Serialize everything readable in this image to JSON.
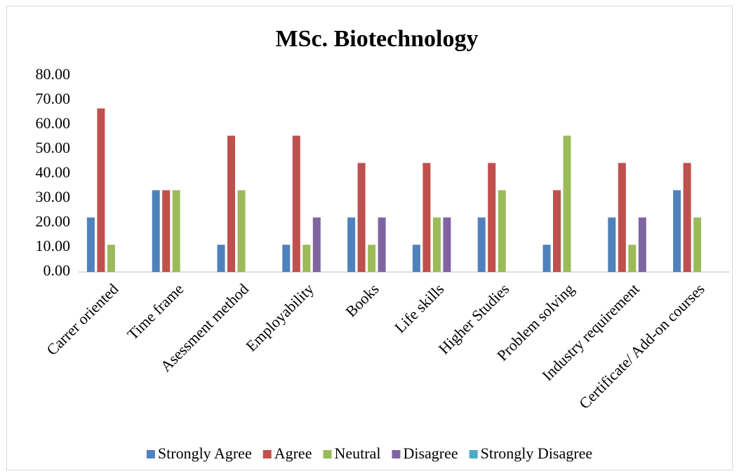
{
  "chart_data": {
    "type": "bar",
    "title": "MSc. Biotechnology",
    "categories": [
      "Carrer oriented",
      "Time frame",
      "Asessment method",
      "Employability",
      "Books",
      "Life skills",
      "Higher Studies",
      "Problem solving",
      "Industry requirement",
      "Certificate/ Add-on courses"
    ],
    "series": [
      {
        "name": "Strongly Agree",
        "color": "#4f81bd",
        "values": [
          22.22,
          33.33,
          11.11,
          11.11,
          22.22,
          11.11,
          22.22,
          11.11,
          22.22,
          33.33
        ]
      },
      {
        "name": "Agree",
        "color": "#c0504d",
        "values": [
          66.67,
          33.33,
          55.56,
          55.56,
          44.44,
          44.44,
          44.44,
          33.33,
          44.44,
          44.44
        ]
      },
      {
        "name": "Neutral",
        "color": "#9bbb59",
        "values": [
          11.11,
          33.33,
          33.33,
          11.11,
          11.11,
          22.22,
          33.33,
          55.56,
          11.11,
          22.22
        ]
      },
      {
        "name": "Disagree",
        "color": "#8064a2",
        "values": [
          0,
          0,
          0,
          22.22,
          22.22,
          22.22,
          0,
          0,
          22.22,
          0
        ]
      },
      {
        "name": "Strongly Disagree",
        "color": "#4bacc6",
        "values": [
          0,
          0,
          0,
          0,
          0,
          0,
          0,
          0,
          0,
          0
        ]
      }
    ],
    "ylim": [
      0,
      80
    ],
    "yticks": [
      {
        "value": 0,
        "label": "0.00"
      },
      {
        "value": 10,
        "label": "10.00"
      },
      {
        "value": 20,
        "label": "20.00"
      },
      {
        "value": 30,
        "label": "30.00"
      },
      {
        "value": 40,
        "label": "40.00"
      },
      {
        "value": 50,
        "label": "50.00"
      },
      {
        "value": 60,
        "label": "60.00"
      },
      {
        "value": 70,
        "label": "70.00"
      },
      {
        "value": 80,
        "label": "80.00"
      }
    ],
    "grid": false,
    "legend": "bottom"
  }
}
